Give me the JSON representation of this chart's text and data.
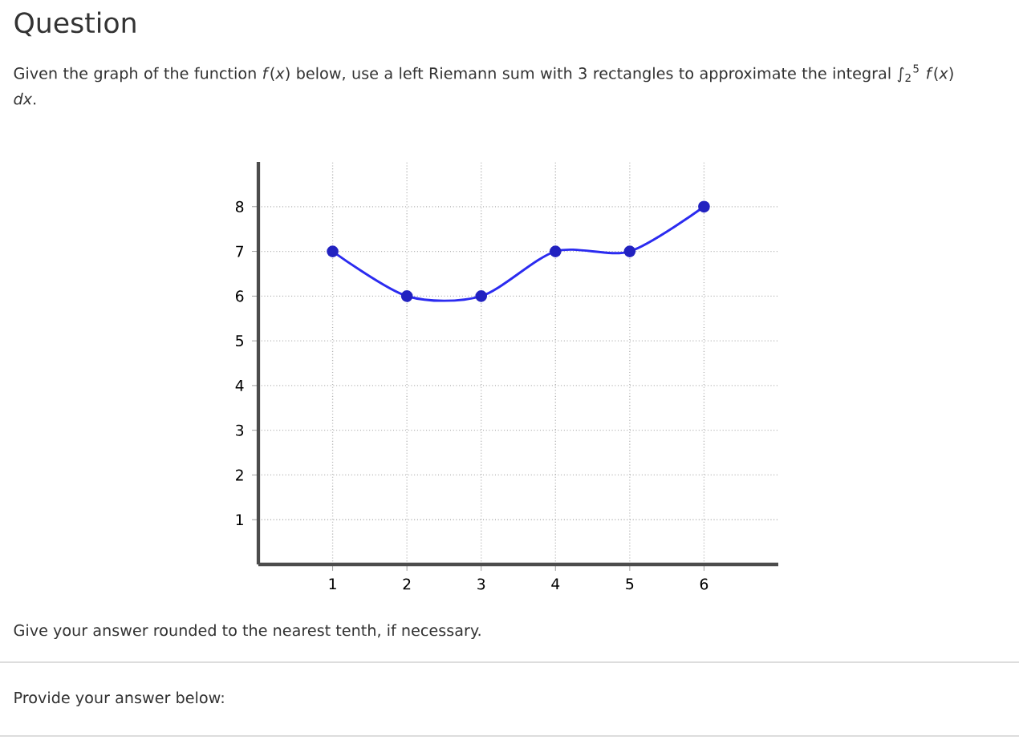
{
  "chart_data": {
    "type": "line",
    "title": "Question",
    "subtitle": "Given the graph of the function *f*(*x*) below, use a left Riemann sum with 3 rectangles to approximate the integral ∫$_{2}$$^{5}$ *f*(*x*) *dx*.",
    "annotations": [
      "Give your answer rounded to the nearest tenth, if necessary.",
      "Provide your answer below:"
    ],
    "x": [
      1,
      2,
      3,
      4,
      5,
      6
    ],
    "values": [
      7,
      6,
      6,
      7,
      7,
      8
    ],
    "color": "#2b2bf0",
    "marker": "circle",
    "grid": true,
    "xlim": [
      0,
      7
    ],
    "ylim": [
      0,
      9
    ],
    "xticks": [
      1,
      2,
      3,
      4,
      5,
      6
    ],
    "yticks": [
      1,
      2,
      3,
      4,
      5,
      6,
      7,
      8
    ]
  }
}
